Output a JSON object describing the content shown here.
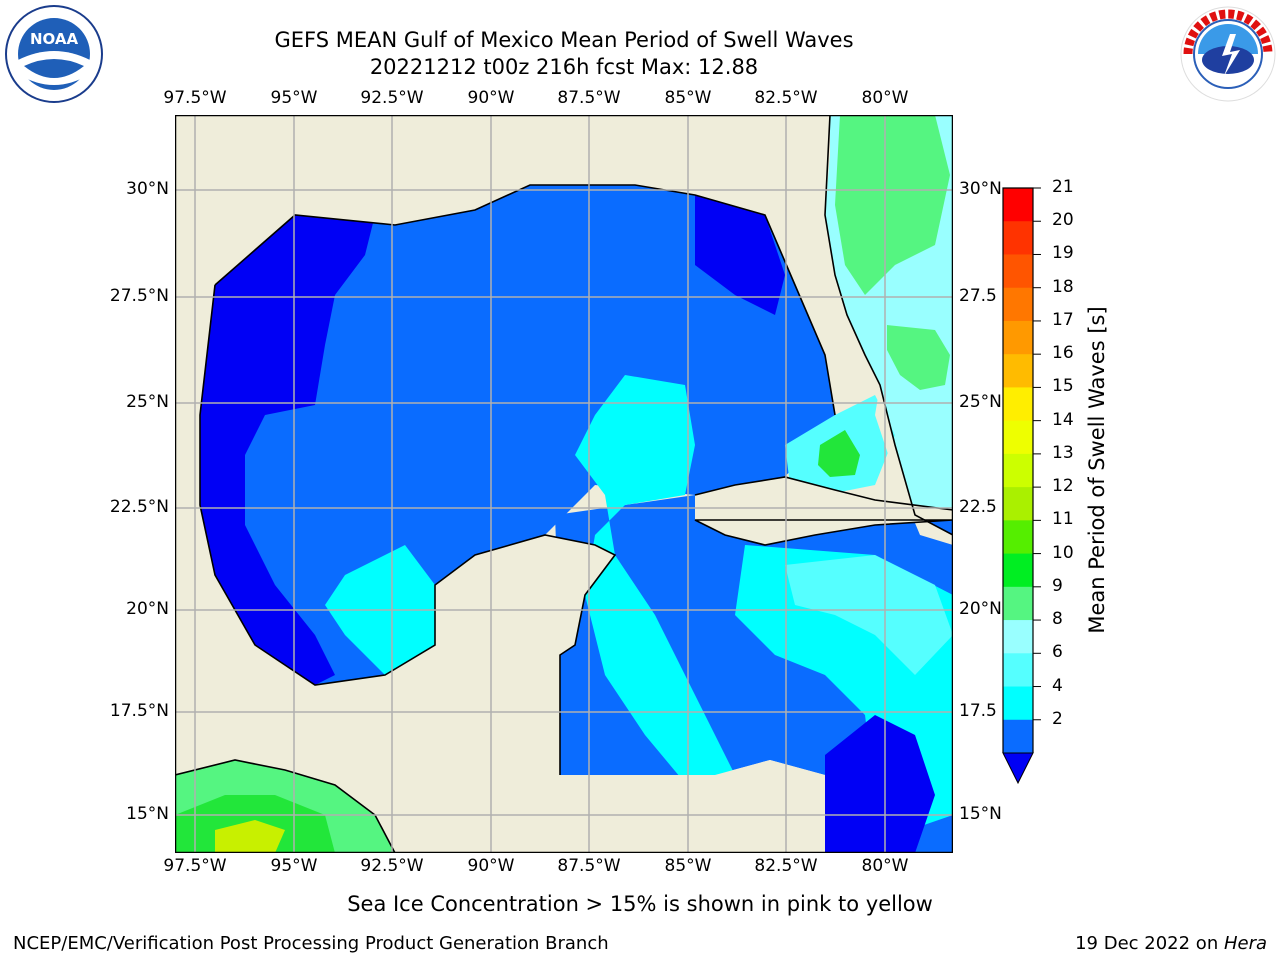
{
  "header": {
    "title_line1": "GEFS MEAN Gulf of Mexico Mean Period of Swell Waves",
    "title_line2": "20221212 t00z 216h fcst   Max: 12.88"
  },
  "logos": {
    "left": {
      "icon": "noaa-logo",
      "text": "NOAA"
    },
    "right": {
      "icon": "national-weather-service-logo",
      "text": "NATIONAL WEATHER SERVICE"
    }
  },
  "map": {
    "lon_labels": [
      "97.5°W",
      "95°W",
      "92.5°W",
      "90°W",
      "87.5°W",
      "85°W",
      "82.5°W",
      "80°W"
    ],
    "lat_labels_left": [
      "30°N",
      "27.5°N",
      "25°N",
      "22.5°N",
      "20°N",
      "17.5°N",
      "15°N"
    ],
    "lat_labels_right": [
      "30°N",
      "27.5",
      "25°N",
      "22.5",
      "20°N",
      "17.5",
      "15°N"
    ],
    "colors": {
      "land": "#efedda",
      "blue_dark": "#0000f5",
      "blue": "#0a6cff",
      "cyan": "#00ffff",
      "cyan_light": "#55ffff",
      "aqua_pale": "#99ffff",
      "green_light": "#55f581",
      "green": "#22e63a",
      "yellow_green": "#c8f000",
      "grid": "#b0b0b0"
    }
  },
  "colorbar": {
    "label": "Mean Period of Swell Waves [s]",
    "ticks": [
      "21",
      "20",
      "19",
      "18",
      "17",
      "16",
      "15",
      "14",
      "13",
      "12",
      "11",
      "10",
      "9",
      "8",
      "6",
      "4",
      "2"
    ],
    "colors": [
      "#ff0000",
      "#ff3300",
      "#ff5500",
      "#ff7700",
      "#ff9900",
      "#ffbb00",
      "#ffee00",
      "#eeff00",
      "#ccff00",
      "#aaf000",
      "#55ee00",
      "#00ee22",
      "#55f581",
      "#99ffff",
      "#55ffff",
      "#00ffff",
      "#0a6cff"
    ],
    "extend_color": "#0000f5"
  },
  "footer": {
    "note": "Sea Ice Concentration > 15% is shown in pink to yellow",
    "left": "NCEP/EMC/Verification Post Processing Product Generation Branch",
    "right_prefix": "19 Dec 2022 on ",
    "right_host": "Hera"
  }
}
